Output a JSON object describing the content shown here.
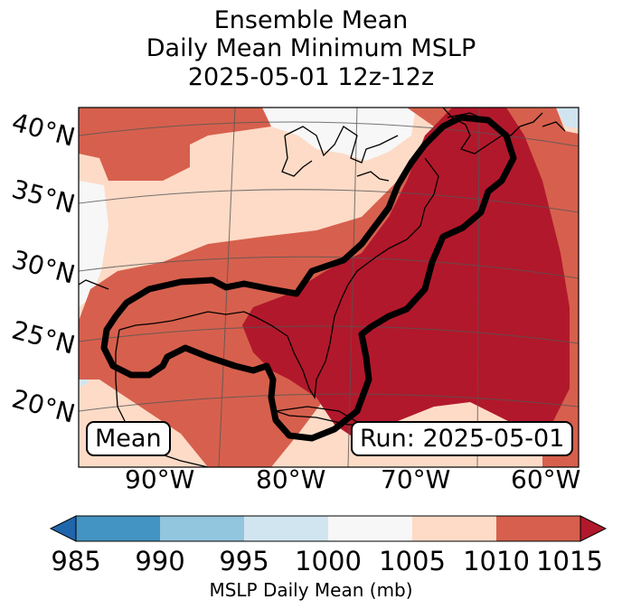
{
  "title": {
    "line1": "Ensemble Mean",
    "line2": "Daily Mean Minimum MSLP",
    "line3": "2025-05-01 12z-12z"
  },
  "map": {
    "lat_labels": [
      "40°N",
      "35°N",
      "30°N",
      "25°N",
      "20°N"
    ],
    "lon_labels": [
      "90°W",
      "80°W",
      "70°W",
      "60°W"
    ],
    "mean_box": "Mean",
    "run_box": "Run: 2025-05-01"
  },
  "colorbar": {
    "ticks": [
      "985",
      "990",
      "995",
      "1000",
      "1005",
      "1010",
      "1015"
    ],
    "label": "MSLP Daily Mean (mb)",
    "colors": [
      "#2166ac",
      "#4393c3",
      "#92c5de",
      "#d1e5f0",
      "#f7f7f7",
      "#fddbc7",
      "#d6604d",
      "#b2182b"
    ]
  }
}
